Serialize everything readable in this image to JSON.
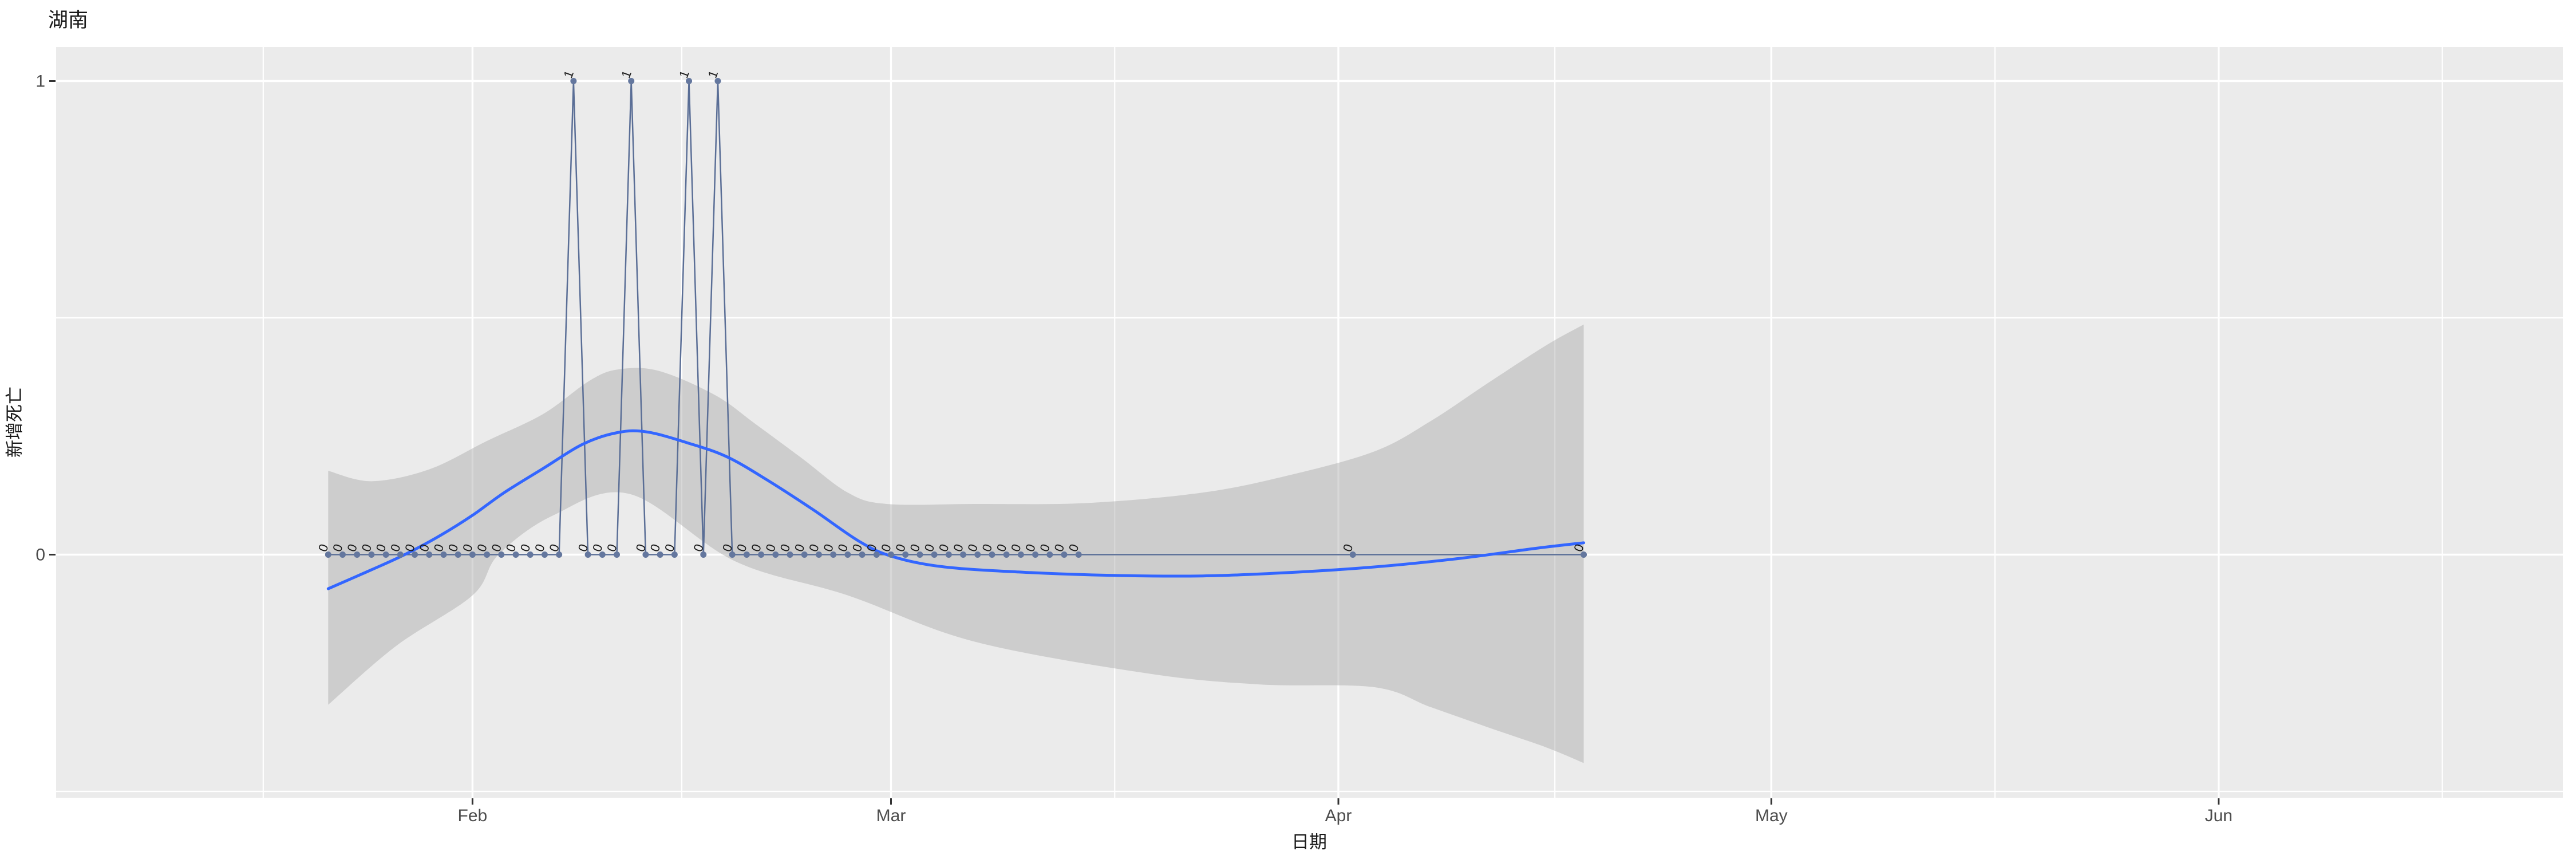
{
  "chart_data": {
    "type": "scatter+line with smooth trend and confidence band",
    "title": "湖南",
    "xlabel": "日期",
    "ylabel": "新增死亡",
    "legend": "none",
    "grid": "on",
    "x_axis": {
      "epoch_date": "2020-01-22",
      "tick_labels": [
        "Feb",
        "Mar",
        "Apr",
        "May",
        "Jun"
      ],
      "tick_days": [
        10,
        39,
        70,
        100,
        131
      ],
      "minor_days": [
        -4.5,
        24.5,
        54.5,
        85,
        115.5,
        146.5
      ]
    },
    "y_axis": {
      "tick_labels": [
        "1",
        "0"
      ],
      "tick_values": [
        1,
        0
      ],
      "minor_values": [
        0.5,
        -0.5
      ],
      "range": [
        -0.513,
        1.072
      ]
    },
    "points": {
      "dates": [
        "2020-01-22",
        "2020-01-23",
        "2020-01-24",
        "2020-01-25",
        "2020-01-26",
        "2020-01-27",
        "2020-01-28",
        "2020-01-29",
        "2020-01-30",
        "2020-01-31",
        "2020-02-01",
        "2020-02-02",
        "2020-02-03",
        "2020-02-04",
        "2020-02-05",
        "2020-02-06",
        "2020-02-07",
        "2020-02-08",
        "2020-02-09",
        "2020-02-10",
        "2020-02-11",
        "2020-02-12",
        "2020-02-13",
        "2020-02-14",
        "2020-02-15",
        "2020-02-16",
        "2020-02-17",
        "2020-02-18",
        "2020-02-19",
        "2020-02-20",
        "2020-02-21",
        "2020-02-22",
        "2020-02-23",
        "2020-02-24",
        "2020-02-25",
        "2020-02-26",
        "2020-02-27",
        "2020-02-28",
        "2020-02-29",
        "2020-03-01",
        "2020-03-02",
        "2020-03-03",
        "2020-03-04",
        "2020-03-05",
        "2020-03-06",
        "2020-03-07",
        "2020-03-08",
        "2020-03-09",
        "2020-03-10",
        "2020-03-11",
        "2020-03-12",
        "2020-03-13",
        "2020-03-14",
        "2020-04-02",
        "2020-04-18"
      ],
      "days": [
        0,
        1,
        2,
        3,
        4,
        5,
        6,
        7,
        8,
        9,
        10,
        11,
        12,
        13,
        14,
        15,
        16,
        17,
        18,
        19,
        20,
        21,
        22,
        23,
        24,
        25,
        26,
        27,
        28,
        29,
        30,
        31,
        32,
        33,
        34,
        35,
        36,
        37,
        38,
        39,
        40,
        41,
        42,
        43,
        44,
        45,
        46,
        47,
        48,
        49,
        50,
        51,
        52,
        71,
        87
      ],
      "values": [
        0,
        0,
        0,
        0,
        0,
        0,
        0,
        0,
        0,
        0,
        0,
        0,
        0,
        0,
        0,
        0,
        0,
        1,
        0,
        0,
        0,
        1,
        0,
        0,
        0,
        1,
        0,
        1,
        0,
        0,
        0,
        0,
        0,
        0,
        0,
        0,
        0,
        0,
        0,
        0,
        0,
        0,
        0,
        0,
        0,
        0,
        0,
        0,
        0,
        0,
        0,
        0,
        0,
        0,
        0
      ]
    },
    "point_label_angle_deg": 70,
    "smooth_line": [
      [
        0,
        -0.072
      ],
      [
        3,
        -0.032
      ],
      [
        5.3,
        0
      ],
      [
        7.8,
        0.041
      ],
      [
        10,
        0.083
      ],
      [
        12.2,
        0.131
      ],
      [
        14.9,
        0.182
      ],
      [
        17.7,
        0.234
      ],
      [
        20.1,
        0.258
      ],
      [
        22.1,
        0.259
      ],
      [
        24.9,
        0.236
      ],
      [
        27.6,
        0.207
      ],
      [
        30.4,
        0.158
      ],
      [
        33.6,
        0.095
      ],
      [
        36.8,
        0.028
      ],
      [
        39.1,
        -0.004
      ],
      [
        42.7,
        -0.026
      ],
      [
        48.7,
        -0.038
      ],
      [
        54.6,
        -0.044
      ],
      [
        60.6,
        -0.045
      ],
      [
        66.5,
        -0.038
      ],
      [
        72.5,
        -0.026
      ],
      [
        78.4,
        -0.008
      ],
      [
        83.6,
        0.013
      ],
      [
        87,
        0.025
      ]
    ],
    "ci_band_upper": [
      [
        0,
        0.177
      ],
      [
        3,
        0.155
      ],
      [
        7,
        0.18
      ],
      [
        11,
        0.24
      ],
      [
        14.9,
        0.297
      ],
      [
        18.1,
        0.367
      ],
      [
        20.1,
        0.391
      ],
      [
        22.9,
        0.388
      ],
      [
        26.8,
        0.337
      ],
      [
        29.6,
        0.276
      ],
      [
        32.8,
        0.204
      ],
      [
        36,
        0.131
      ],
      [
        38.7,
        0.107
      ],
      [
        44.7,
        0.107
      ],
      [
        52.6,
        0.109
      ],
      [
        60.6,
        0.131
      ],
      [
        66.5,
        0.167
      ],
      [
        72.5,
        0.218
      ],
      [
        76.4,
        0.282
      ],
      [
        80.4,
        0.363
      ],
      [
        84.4,
        0.442
      ],
      [
        87,
        0.486
      ]
    ],
    "ci_band_lower": [
      [
        0,
        -0.317
      ],
      [
        4.7,
        -0.193
      ],
      [
        10,
        -0.086
      ],
      [
        11.8,
        0
      ],
      [
        15.6,
        0.083
      ],
      [
        20.9,
        0.128
      ],
      [
        28.2,
        -0.014
      ],
      [
        36,
        -0.086
      ],
      [
        44.7,
        -0.183
      ],
      [
        56.6,
        -0.25
      ],
      [
        64.5,
        -0.274
      ],
      [
        72.5,
        -0.28
      ],
      [
        76.4,
        -0.322
      ],
      [
        80.4,
        -0.365
      ],
      [
        84.4,
        -0.407
      ],
      [
        87,
        -0.44
      ]
    ],
    "colors": {
      "panel_bg": "#EBEBEB",
      "gridline": "#FFFFFF",
      "smooth_line": "#3366FF",
      "ci_band": "#A8A8A8",
      "points": "#64779E",
      "data_line": "#5A6E96",
      "axis_text": "#4D4D4D",
      "tick_mark": "#333333",
      "point_label": "#1A1A1A"
    }
  }
}
